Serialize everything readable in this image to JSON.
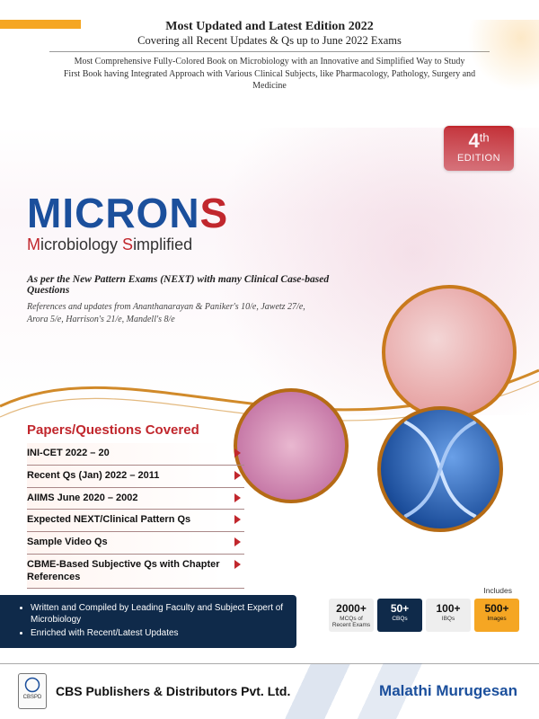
{
  "colors": {
    "brand_blue": "#1b4f9c",
    "brand_red": "#c1272d",
    "navy": "#0f2a4a",
    "amber": "#f5a623",
    "text": "#222222",
    "white": "#ffffff"
  },
  "header": {
    "edition_line": "Most Updated and Latest Edition 2022",
    "covering_line": "Covering all Recent Updates & Qs up to June 2022 Exams",
    "desc1": "Most Comprehensive Fully-Colored Book on Microbiology with an Innovative and Simplified Way to Study",
    "desc2": "First Book having Integrated Approach with Various Clinical Subjects, like Pharmacology, Pathology, Surgery and Medicine"
  },
  "edition_badge": {
    "number": "4",
    "suffix": "th",
    "label": "EDITION"
  },
  "title": {
    "main_pre": "MICRON",
    "main_s": "S",
    "sub_pre_m": "M",
    "sub_mid": "icrobiology ",
    "sub_s": "S",
    "sub_end": "implified"
  },
  "pattern_line": "As per the New Pattern Exams (NEXT) with many Clinical Case-based Questions",
  "refs_line": "References and updates from Ananthanarayan & Paniker's 10/e, Jawetz 27/e, Arora 5/e, Harrison's 21/e, Mandell's 8/e",
  "papers": {
    "title": "Papers/Questions Covered",
    "items": [
      "INI-CET 2022 – 20",
      "Recent Qs (Jan) 2022 – 2011",
      "AIIMS June 2020 – 2002",
      "Expected NEXT/Clinical Pattern Qs",
      "Sample Video Qs",
      "CBME-Based Subjective Qs with Chapter References"
    ]
  },
  "navy_bullets": [
    "Written and Compiled by Leading Faculty and Subject Expert of Microbiology",
    "Enriched with Recent/Latest Updates"
  ],
  "includes_label": "Includes",
  "stats": [
    {
      "n": "2000+",
      "l": "MCQs of Recent Exams",
      "variant": "light"
    },
    {
      "n": "50+",
      "l": "CBQs",
      "variant": "navy"
    },
    {
      "n": "100+",
      "l": "IBQs",
      "variant": "light"
    },
    {
      "n": "500+",
      "l": "Images",
      "variant": "amber"
    }
  ],
  "footer": {
    "logo_text": "CBSPD",
    "publisher": "CBS Publishers & Distributors Pvt. Ltd.",
    "author": "Malathi Murugesan"
  },
  "images": {
    "petri": {
      "name": "petri-dish-image",
      "role": "decorative-photo"
    },
    "tissue": {
      "name": "histology-image",
      "role": "decorative-photo"
    },
    "dna": {
      "name": "dna-helix-image",
      "role": "decorative-photo"
    }
  }
}
